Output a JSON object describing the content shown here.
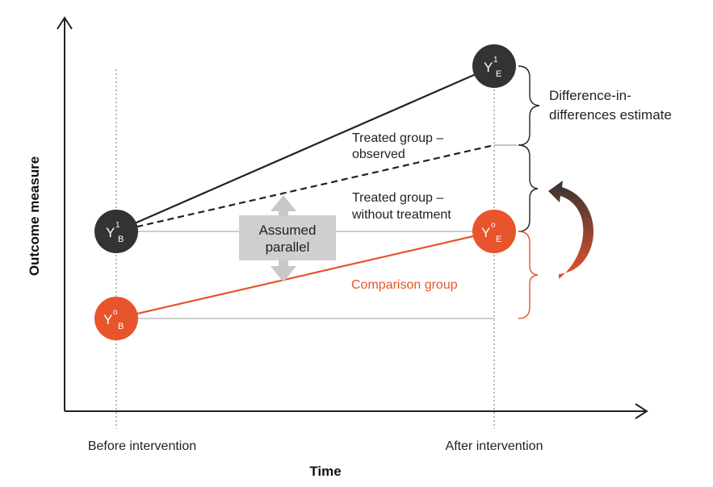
{
  "colors": {
    "treated": "#333333",
    "comparison": "#e8542b",
    "guide": "#b0b0b0",
    "parallel_box": "#cfcfcf",
    "parallel_arrow": "#c4c4c4"
  },
  "axes": {
    "x_title": "Time",
    "y_title": "Outcome measure",
    "x_ticks": [
      "Before intervention",
      "After intervention"
    ]
  },
  "nodes": {
    "treated_before": {
      "main": "Y",
      "sup": "1",
      "sub": "B"
    },
    "treated_after": {
      "main": "Y",
      "sup": "1",
      "sub": "E"
    },
    "comparison_before": {
      "main": "Y",
      "sup": "o",
      "sub": "B"
    },
    "comparison_after": {
      "main": "Y",
      "sup": "o",
      "sub": "E"
    }
  },
  "labels": {
    "treated_observed": [
      "Treated group –",
      "observed"
    ],
    "treated_counterfactual": [
      "Treated group –",
      "without treatment"
    ],
    "comparison": "Comparison group",
    "assumed_parallel": [
      "Assumed",
      "parallel"
    ],
    "did_estimate": [
      "Difference-in-",
      "differences estimate"
    ]
  }
}
